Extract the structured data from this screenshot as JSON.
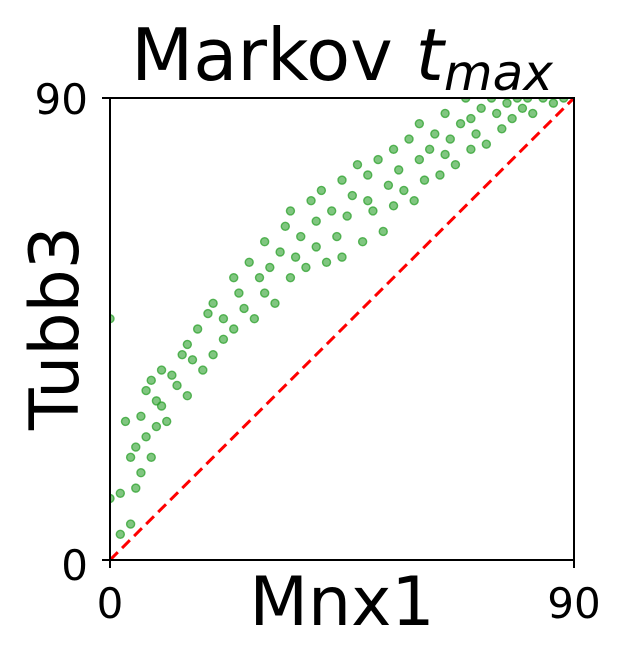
{
  "chart_data": {
    "type": "scatter",
    "title": {
      "prefix": "Markov ",
      "variable": "t",
      "subscript": "max"
    },
    "xlabel": "Mnx1",
    "ylabel": "Tubb3",
    "xlim": [
      0,
      90
    ],
    "ylim": [
      0,
      90
    ],
    "xticks": [
      0,
      90
    ],
    "yticks": [
      0,
      90
    ],
    "x_tick_labels": [
      "0",
      "90"
    ],
    "y_tick_labels": [
      "0",
      "90"
    ],
    "grid": false,
    "legend": "none",
    "series": [
      {
        "color": "#2ca02c",
        "alpha": 0.6,
        "marker": "circle",
        "trend_center": [
          [
            0,
            28
          ],
          [
            10,
            33
          ],
          [
            20,
            40
          ],
          [
            30,
            46
          ],
          [
            40,
            53
          ],
          [
            50,
            60
          ],
          [
            60,
            69
          ],
          [
            70,
            76
          ],
          [
            80,
            84
          ],
          [
            90,
            93
          ]
        ],
        "x": [
          0,
          0,
          2,
          2,
          3,
          4,
          4,
          5,
          5,
          6,
          6,
          7,
          7,
          8,
          8,
          9,
          9,
          10,
          10,
          11,
          12,
          13,
          14,
          15,
          15,
          16,
          17,
          18,
          19,
          20,
          20,
          22,
          22,
          24,
          24,
          25,
          26,
          27,
          28,
          29,
          30,
          30,
          31,
          32,
          33,
          34,
          35,
          35,
          36,
          37,
          38,
          39,
          40,
          40,
          41,
          42,
          43,
          44,
          45,
          45,
          46,
          47,
          48,
          49,
          50,
          50,
          51,
          52,
          53,
          54,
          55,
          55,
          56,
          57,
          58,
          59,
          60,
          60,
          61,
          62,
          63,
          64,
          65,
          65,
          66,
          67,
          68,
          69,
          70,
          70,
          71,
          72,
          73,
          74,
          75,
          76,
          77,
          78,
          79,
          80,
          81,
          82,
          84,
          86,
          88
        ],
        "y": [
          12,
          47,
          5,
          13,
          27,
          7,
          20,
          14,
          22,
          28,
          17,
          33,
          24,
          20,
          35,
          26,
          31,
          30,
          37,
          27,
          36,
          34,
          40,
          32,
          42,
          39,
          45,
          37,
          48,
          40,
          50,
          43,
          47,
          55,
          45,
          52,
          49,
          58,
          47,
          55,
          52,
          62,
          57,
          50,
          60,
          65,
          55,
          68,
          59,
          63,
          57,
          70,
          61,
          66,
          72,
          58,
          68,
          63,
          74,
          59,
          67,
          71,
          77,
          62,
          70,
          75,
          68,
          78,
          64,
          73,
          80,
          69,
          76,
          72,
          82,
          70,
          78,
          85,
          74,
          80,
          83,
          75,
          87,
          79,
          82,
          77,
          85,
          90,
          80,
          86,
          83,
          88,
          81,
          90,
          87,
          84,
          89,
          86,
          90,
          88,
          90,
          87,
          90,
          89,
          90
        ]
      }
    ],
    "reference_line": {
      "kind": "y=x",
      "color": "#ff0000",
      "style": "dashed"
    }
  }
}
